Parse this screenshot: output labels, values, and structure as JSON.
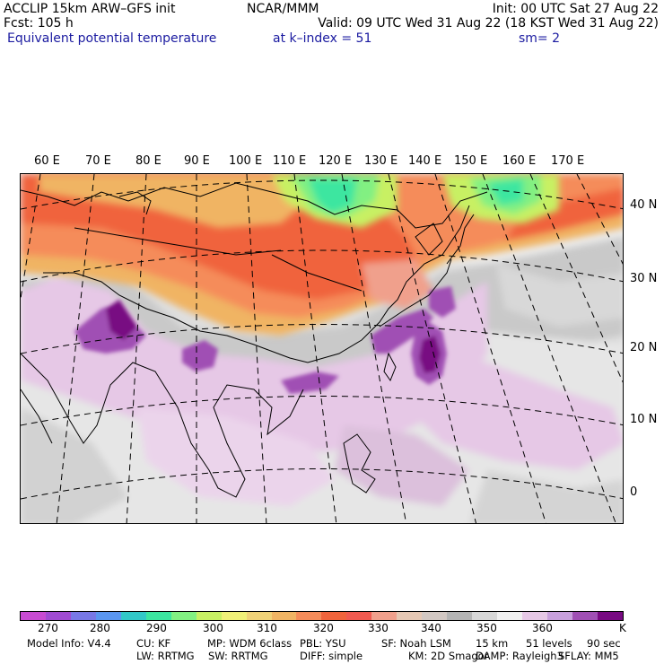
{
  "header": {
    "model": "ACCLIP 15km ARW–GFS init",
    "fcst": "Fcst:  105 h",
    "field": "Equivalent potential temperature",
    "center": "NCAR/MMM",
    "level": "at k–index =  51",
    "init": "Init: 00 UTC Sat 27 Aug 22",
    "valid": "Valid: 09 UTC Wed 31 Aug 22 (18 KST Wed 31 Aug 22)",
    "smooth": "sm= 2"
  },
  "map": {
    "lon_labels": [
      "60 E",
      "70 E",
      "80 E",
      "90 E",
      "100 E",
      "110 E",
      "120 E",
      "130 E",
      "140 E",
      "150 E",
      "160 E",
      "170 E"
    ],
    "lat_labels": [
      "40 N",
      "30 N",
      "20 N",
      "10 N",
      "0"
    ]
  },
  "colorbar": {
    "colors": [
      "#c84bd2",
      "#a04bd2",
      "#7878e6",
      "#5a96f0",
      "#32c8c8",
      "#3ce6a0",
      "#82f082",
      "#c8f064",
      "#f0f078",
      "#f0d278",
      "#f0b464",
      "#f58c5a",
      "#f0643c",
      "#f05a50",
      "#f0a08c",
      "#e6c8b4",
      "#d2c8c3",
      "#b4b4b4",
      "#d7d7d7",
      "#f0f0f0",
      "#e6c8e6",
      "#c8a0dc",
      "#a050b4",
      "#780a82"
    ],
    "tick_labels": [
      "270",
      "280",
      "290",
      "300",
      "310",
      "320",
      "330",
      "340",
      "350",
      "360"
    ],
    "unit": "K"
  },
  "model_info": {
    "line1": [
      "Model Info: V4.4",
      "CU: KF",
      "MP: WDM 6class",
      "PBL: YSU",
      "SF: Noah LSM",
      "15 km",
      "51 levels",
      "90 sec"
    ],
    "line2": [
      "LW: RRTMG",
      "SW: RRTMG",
      "DIFF: simple",
      "KM: 2D Smagor",
      "DAMP: Rayleigh3",
      "SFLAY: MM5"
    ]
  }
}
